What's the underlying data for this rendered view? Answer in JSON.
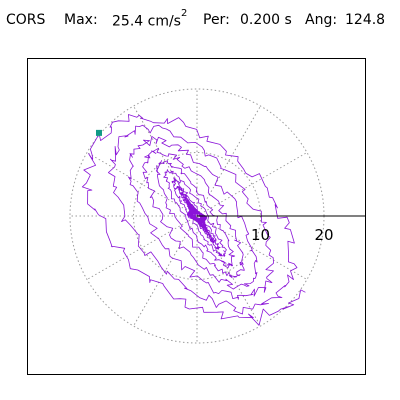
{
  "header": {
    "station": "CORS",
    "max_label": "Max:",
    "max_value": "25.4 cm/s",
    "max_exp": "2",
    "per_label": "Per:",
    "per_value": "0.200 s",
    "ang_label": "Ang:",
    "ang_value": "124.8"
  },
  "colors": {
    "trace": "#8a14d8",
    "marker": "#109a86",
    "grid": "#9a9a9a",
    "axis": "#000000",
    "frame": "#000000"
  },
  "chart_data": {
    "type": "polar-orbit (particle-motion) plot",
    "title": "",
    "ring_values": [
      10,
      20
    ],
    "tick_labels": [
      "10",
      "20"
    ],
    "radial_lines_deg": [
      0,
      30,
      60,
      90,
      120,
      150,
      180,
      210,
      240,
      270,
      300,
      330
    ],
    "max_amplitude": 25.4,
    "units": "cm/s^2",
    "period_s": 0.2,
    "angle_deg": 124.8,
    "grid": true,
    "dominant_orientation_deg": 124.8,
    "start_marker": "top-left"
  }
}
